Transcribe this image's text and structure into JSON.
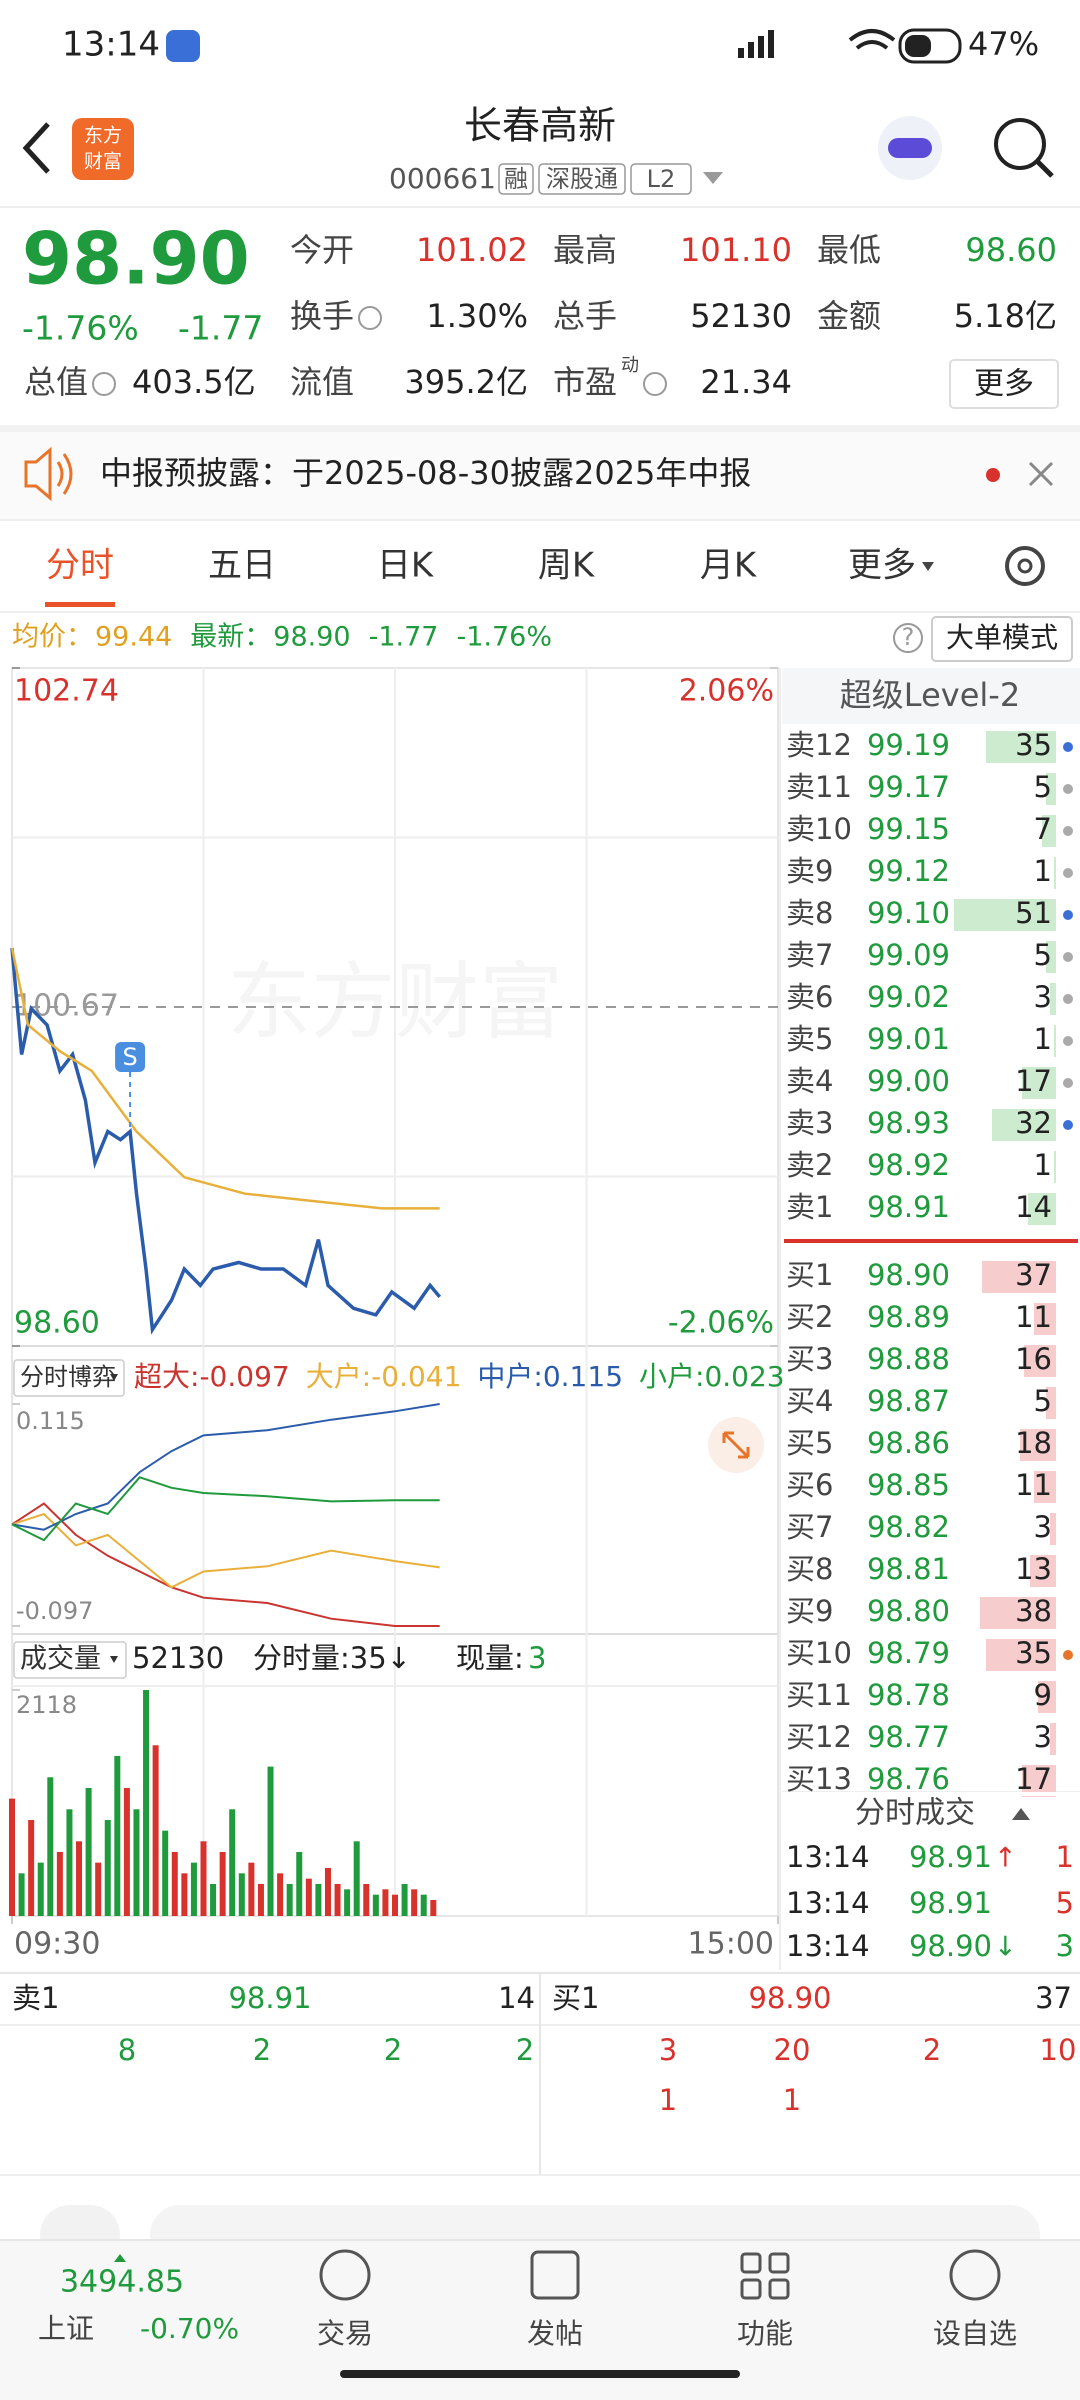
{
  "status_bar": {
    "time": "13:14",
    "battery": "47%"
  },
  "header": {
    "logo": [
      "东方",
      "财富"
    ],
    "title": "长春高新",
    "code": "000661",
    "badges": [
      "融",
      "深股通",
      "L2"
    ]
  },
  "quote": {
    "price": "98.90",
    "change_pct": "-1.76%",
    "change": "-1.77",
    "more_button": "更多",
    "fields": [
      {
        "label": "今开",
        "value": "101.02",
        "color": "#d8322c"
      },
      {
        "label": "最高",
        "value": "101.10",
        "color": "#d8322c"
      },
      {
        "label": "最低",
        "value": "98.60",
        "color": "#1f9a3c"
      },
      {
        "label": "换手",
        "value": "1.30%",
        "color": "#222222",
        "icon": true
      },
      {
        "label": "总手",
        "value": "52130",
        "color": "#222222"
      },
      {
        "label": "金额",
        "value": "5.18亿",
        "color": "#222222"
      },
      {
        "label": "总值",
        "value": "403.5亿",
        "color": "#222222",
        "icon": true
      },
      {
        "label": "流值",
        "value": "395.2亿",
        "color": "#222222"
      },
      {
        "label": "市盈",
        "value": "21.34",
        "color": "#222222",
        "icon": true,
        "sup": "动"
      }
    ]
  },
  "notice": {
    "text": "中报预披露：于2025-08-30披露2025年中报"
  },
  "tabs": {
    "items": [
      "分时",
      "五日",
      "日K",
      "周K",
      "月K",
      "更多"
    ],
    "active": 0
  },
  "info_line": {
    "avg_label": "均价：",
    "avg": "99.44",
    "latest_label": "最新：",
    "latest": "98.90",
    "change": "-1.77",
    "change_pct": "-1.76%",
    "mode_button": "大单模式"
  },
  "price_chart": {
    "type": "line",
    "watermark": "东方财富",
    "xlim": [
      0,
      240
    ],
    "xticks": [
      {
        "value": 0,
        "label": "09:30"
      },
      {
        "value": 240,
        "label": "15:00"
      }
    ],
    "ylim": [
      98.6,
      102.74
    ],
    "yticks": [
      {
        "value": 98.6,
        "label": "98.60"
      },
      {
        "value": 100.67,
        "label": "100.67"
      },
      {
        "value": 102.74,
        "label": "102.74"
      }
    ],
    "y2lim": [
      -2.06,
      2.06
    ],
    "y2ticks": [
      {
        "value": -2.06,
        "label": "-2.06%"
      },
      {
        "value": 2.06,
        "label": "2.06%"
      }
    ],
    "series": [
      {
        "color": "#2b5cab",
        "x": [
          0,
          3,
          6,
          11,
          15,
          19,
          23,
          26,
          30,
          34,
          37,
          39,
          42,
          44,
          47,
          50,
          54,
          59,
          63,
          71,
          78,
          85,
          92,
          96,
          99,
          107,
          114,
          119,
          126,
          131,
          134
        ],
        "values": [
          101.03,
          100.38,
          100.66,
          100.56,
          100.28,
          100.38,
          100.1,
          99.72,
          99.91,
          99.86,
          99.91,
          99.53,
          99.07,
          98.7,
          98.79,
          98.88,
          99.07,
          98.97,
          99.07,
          99.11,
          99.07,
          99.07,
          98.97,
          99.25,
          98.97,
          98.83,
          98.79,
          98.93,
          98.83,
          98.97,
          98.9
        ]
      },
      {
        "color": "#e8b03a",
        "x": [
          0,
          5,
          15,
          25,
          39,
          54,
          73,
          92,
          116,
          134
        ],
        "values": [
          101.03,
          100.56,
          100.4,
          100.28,
          99.91,
          99.63,
          99.53,
          99.49,
          99.44,
          99.44
        ]
      }
    ],
    "marker": {
      "label": "S",
      "x": 37,
      "color": "#4a8ee0"
    }
  },
  "flow_chart": {
    "type": "line",
    "selector": "分时博弈",
    "xlim": [
      0,
      240
    ],
    "ylim": [
      -0.097,
      0.115
    ],
    "yticks": [
      -0.097,
      0.115
    ],
    "series": [
      {
        "name": "超大:",
        "color": "#c9342f",
        "x": [
          0,
          10,
          20,
          30,
          40,
          50,
          60,
          80,
          100,
          120,
          134
        ],
        "values": [
          0,
          0.02,
          -0.01,
          -0.03,
          -0.045,
          -0.06,
          -0.07,
          -0.075,
          -0.09,
          -0.097,
          -0.097
        ]
      },
      {
        "name": "大户:",
        "color": "#e8b03a",
        "x": [
          0,
          10,
          20,
          30,
          40,
          50,
          60,
          80,
          100,
          120,
          134
        ],
        "values": [
          0,
          0.01,
          -0.02,
          -0.01,
          -0.035,
          -0.06,
          -0.045,
          -0.04,
          -0.025,
          -0.035,
          -0.041
        ]
      },
      {
        "name": "中户:",
        "color": "#2b5cab",
        "x": [
          0,
          10,
          20,
          30,
          40,
          50,
          60,
          80,
          100,
          120,
          134
        ],
        "values": [
          0,
          -0.005,
          0.01,
          0.02,
          0.05,
          0.07,
          0.085,
          0.09,
          0.1,
          0.108,
          0.115
        ]
      },
      {
        "name": "小户:",
        "color": "#1f9a3c",
        "x": [
          0,
          10,
          20,
          30,
          40,
          50,
          60,
          80,
          100,
          120,
          134
        ],
        "values": [
          0,
          -0.015,
          0.02,
          0.01,
          0.045,
          0.035,
          0.03,
          0.027,
          0.022,
          0.023,
          0.023
        ]
      }
    ]
  },
  "volume_chart": {
    "type": "bar",
    "selector": "成交量",
    "total": "52130",
    "minute_volume": "分时量:35↓",
    "current_label": "现量:",
    "current": "3",
    "xlim": [
      0,
      240
    ],
    "ylim": [
      0,
      2118
    ],
    "yticks": [
      2118
    ],
    "up_color": "#d8322c",
    "down_color": "#1f9a3c",
    "x": [
      0,
      3,
      6,
      9,
      12,
      15,
      18,
      21,
      24,
      27,
      30,
      33,
      36,
      39,
      42,
      45,
      48,
      51,
      54,
      57,
      60,
      63,
      66,
      69,
      72,
      75,
      78,
      81,
      84,
      87,
      90,
      93,
      96,
      99,
      102,
      105,
      108,
      111,
      114,
      117,
      120,
      123,
      126,
      129,
      132
    ],
    "values": [
      1100,
      400,
      900,
      500,
      1300,
      600,
      1000,
      700,
      1200,
      500,
      900,
      1500,
      1200,
      1000,
      2118,
      1600,
      800,
      600,
      400,
      500,
      700,
      300,
      600,
      1000,
      400,
      500,
      300,
      1400,
      400,
      300,
      600,
      350,
      300,
      450,
      300,
      250,
      700,
      300,
      200,
      250,
      200,
      300,
      250,
      200,
      150
    ],
    "rising": [
      true,
      false,
      true,
      false,
      false,
      true,
      false,
      true,
      false,
      true,
      false,
      false,
      true,
      false,
      false,
      true,
      false,
      true,
      true,
      false,
      true,
      false,
      true,
      false,
      false,
      true,
      true,
      false,
      true,
      false,
      false,
      true,
      false,
      true,
      true,
      false,
      false,
      true,
      false,
      true,
      true,
      false,
      true,
      false,
      true
    ]
  },
  "order_book": {
    "title": "超级Level-2",
    "ask_color": "#cdeccf",
    "bid_color": "#f6cccc",
    "asks": [
      {
        "level": "卖12",
        "price": "99.19",
        "qty": 35,
        "dot": "#3a6fd8"
      },
      {
        "level": "卖11",
        "price": "99.17",
        "qty": 5,
        "dot": "#aaaaaa"
      },
      {
        "level": "卖10",
        "price": "99.15",
        "qty": 7,
        "dot": "#aaaaaa"
      },
      {
        "level": "卖9",
        "price": "99.12",
        "qty": 1,
        "dot": "#aaaaaa"
      },
      {
        "level": "卖8",
        "price": "99.10",
        "qty": 51,
        "dot": "#3a6fd8"
      },
      {
        "level": "卖7",
        "price": "99.09",
        "qty": 5,
        "dot": "#aaaaaa"
      },
      {
        "level": "卖6",
        "price": "99.02",
        "qty": 3,
        "dot": "#aaaaaa"
      },
      {
        "level": "卖5",
        "price": "99.01",
        "qty": 1,
        "dot": "#aaaaaa"
      },
      {
        "level": "卖4",
        "price": "99.00",
        "qty": 17,
        "dot": "#aaaaaa"
      },
      {
        "level": "卖3",
        "price": "98.93",
        "qty": 32,
        "dot": "#3a6fd8"
      },
      {
        "level": "卖2",
        "price": "98.92",
        "qty": 1
      },
      {
        "level": "卖1",
        "price": "98.91",
        "qty": 14
      }
    ],
    "bids": [
      {
        "level": "买1",
        "price": "98.90",
        "qty": 37
      },
      {
        "level": "买2",
        "price": "98.89",
        "qty": 11
      },
      {
        "level": "买3",
        "price": "98.88",
        "qty": 16
      },
      {
        "level": "买4",
        "price": "98.87",
        "qty": 5
      },
      {
        "level": "买5",
        "price": "98.86",
        "qty": 18
      },
      {
        "level": "买6",
        "price": "98.85",
        "qty": 11
      },
      {
        "level": "买7",
        "price": "98.82",
        "qty": 3
      },
      {
        "level": "买8",
        "price": "98.81",
        "qty": 13
      },
      {
        "level": "买9",
        "price": "98.80",
        "qty": 38
      },
      {
        "level": "买10",
        "price": "98.79",
        "qty": 35,
        "dot": "#e8742a"
      },
      {
        "level": "买11",
        "price": "98.78",
        "qty": 9
      },
      {
        "level": "买12",
        "price": "98.77",
        "qty": 3
      },
      {
        "level": "买13",
        "price": "98.76",
        "qty": 17
      }
    ]
  },
  "trades": {
    "title": "分时成交",
    "rows": [
      {
        "time": "13:14",
        "price": "98.91",
        "arrow": "↑",
        "arrow_color": "#d8322c",
        "qty": "1",
        "qty_color": "#d8322c"
      },
      {
        "time": "13:14",
        "price": "98.91",
        "qty": "5",
        "qty_color": "#d8322c"
      },
      {
        "time": "13:14",
        "price": "98.90",
        "arrow": "↓",
        "arrow_color": "#1f9a3c",
        "qty": "3",
        "qty_color": "#1f9a3c"
      }
    ]
  },
  "bottom_panel": {
    "ask": {
      "label": "卖1",
      "price": "98.91",
      "qty": "14",
      "orders": [
        "8",
        "2",
        "2",
        "2"
      ]
    },
    "bid": {
      "label": "买1",
      "price": "98.90",
      "qty": "37",
      "orders": [
        "3",
        "20",
        "2",
        "10",
        "1",
        "1"
      ]
    }
  },
  "footer": {
    "index_value": "3494.85",
    "index_name": "上证",
    "index_change": "-0.70%",
    "nav": [
      "交易",
      "发帖",
      "功能",
      "设自选"
    ]
  }
}
